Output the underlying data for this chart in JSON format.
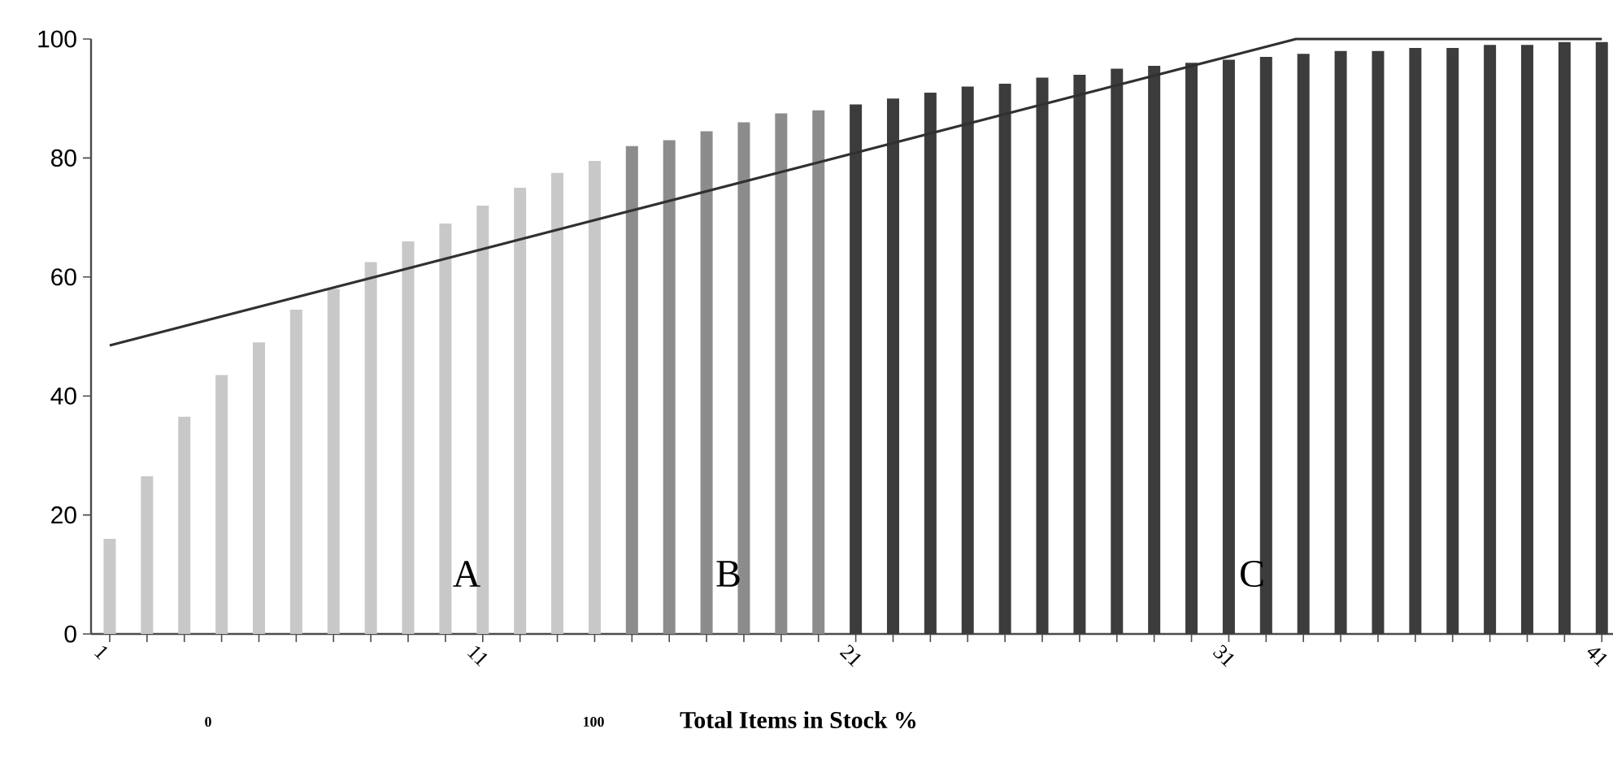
{
  "chart_data": {
    "type": "bar",
    "x": [
      1,
      2,
      3,
      4,
      5,
      6,
      7,
      8,
      9,
      10,
      11,
      12,
      13,
      14,
      15,
      16,
      17,
      18,
      19,
      20,
      21,
      22,
      23,
      24,
      25,
      26,
      27,
      28,
      29,
      30,
      31,
      32,
      33,
      34,
      35,
      36,
      37,
      38,
      39,
      40,
      41
    ],
    "series": [
      {
        "values": [
          16,
          26.5,
          36.5,
          43.5,
          49,
          54.5,
          58,
          62.5,
          66,
          69,
          72,
          75,
          77.5,
          79.5,
          82,
          83,
          84.5,
          86,
          87.5,
          88,
          89,
          90,
          91,
          92,
          92.5,
          93.5,
          94,
          95,
          95.5,
          96,
          96.5,
          97,
          97.5,
          98,
          98,
          98.5,
          98.5,
          99,
          99,
          99.5,
          99.5
        ],
        "colors": [
          "#c8c8c8",
          "#c8c8c8",
          "#c8c8c8",
          "#c8c8c8",
          "#c8c8c8",
          "#c8c8c8",
          "#c8c8c8",
          "#c8c8c8",
          "#c8c8c8",
          "#c8c8c8",
          "#c8c8c8",
          "#c8c8c8",
          "#c8c8c8",
          "#c8c8c8",
          "#8c8c8c",
          "#8c8c8c",
          "#8c8c8c",
          "#8c8c8c",
          "#8c8c8c",
          "#8c8c8c",
          "#3c3c3c",
          "#3c3c3c",
          "#3c3c3c",
          "#3c3c3c",
          "#3c3c3c",
          "#3c3c3c",
          "#3c3c3c",
          "#3c3c3c",
          "#3c3c3c",
          "#3c3c3c",
          "#3c3c3c",
          "#3c3c3c",
          "#3c3c3c",
          "#3c3c3c",
          "#3c3c3c",
          "#3c3c3c",
          "#3c3c3c",
          "#3c3c3c",
          "#3c3c3c",
          "#3c3c3c",
          "#3c3c3c"
        ]
      },
      {
        "type": "line",
        "x": [
          1,
          32.8,
          41
        ],
        "values": [
          48.5,
          100,
          100
        ],
        "color": "#303030"
      }
    ],
    "xlim": [
      0.5,
      41.3
    ],
    "ylim": [
      0,
      100
    ],
    "xticks": [
      1,
      {
        "value": 2,
        "label": null
      },
      {
        "value": 3,
        "label": null
      },
      {
        "value": 4,
        "label": null
      },
      {
        "value": 5,
        "label": null
      },
      {
        "value": 6,
        "label": null
      },
      {
        "value": 7,
        "label": null
      },
      {
        "value": 8,
        "label": null
      },
      {
        "value": 9,
        "label": null
      },
      {
        "value": 10,
        "label": null
      },
      11,
      {
        "value": 12,
        "label": null
      },
      {
        "value": 13,
        "label": null
      },
      {
        "value": 14,
        "label": null
      },
      {
        "value": 15,
        "label": null
      },
      {
        "value": 16,
        "label": null
      },
      {
        "value": 17,
        "label": null
      },
      {
        "value": 18,
        "label": null
      },
      {
        "value": 19,
        "label": null
      },
      {
        "value": 20,
        "label": null
      },
      21,
      {
        "value": 22,
        "label": null
      },
      {
        "value": 23,
        "label": null
      },
      {
        "value": 24,
        "label": null
      },
      {
        "value": 25,
        "label": null
      },
      {
        "value": 26,
        "label": null
      },
      {
        "value": 27,
        "label": null
      },
      {
        "value": 28,
        "label": null
      },
      {
        "value": 29,
        "label": null
      },
      {
        "value": 30,
        "label": null
      },
      31,
      {
        "value": 32,
        "label": null
      },
      {
        "value": 33,
        "label": null
      },
      {
        "value": 34,
        "label": null
      },
      {
        "value": 35,
        "label": null
      },
      {
        "value": 36,
        "label": null
      },
      {
        "value": 37,
        "label": null
      },
      {
        "value": 38,
        "label": null
      },
      {
        "value": 39,
        "label": null
      },
      {
        "value": 40,
        "label": null
      },
      41
    ],
    "yticks": [
      0,
      20,
      40,
      60,
      80,
      100
    ],
    "xlabel": "Total Items in Stock %",
    "annotations": [
      "A",
      "B",
      "C",
      "0",
      "100"
    ]
  }
}
